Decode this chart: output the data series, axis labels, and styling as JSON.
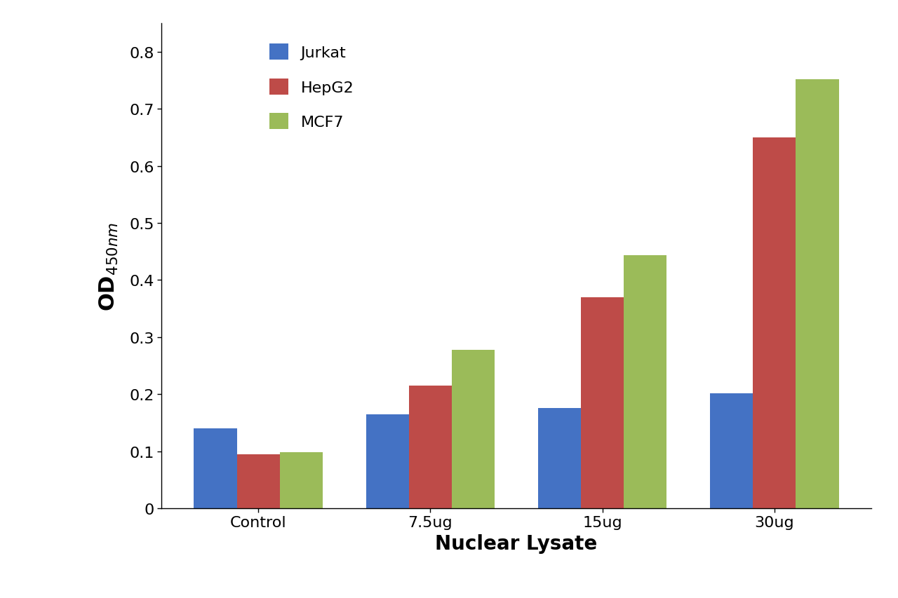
{
  "categories": [
    "Control",
    "7.5ug",
    "15ug",
    "30ug"
  ],
  "series": {
    "Jurkat": [
      0.14,
      0.165,
      0.175,
      0.202
    ],
    "HepG2": [
      0.095,
      0.215,
      0.37,
      0.65
    ],
    "MCF7": [
      0.098,
      0.278,
      0.443,
      0.752
    ]
  },
  "colors": {
    "Jurkat": "#4472C4",
    "HepG2": "#BE4B48",
    "MCF7": "#9BBB59"
  },
  "ylabel_main": "OD",
  "ylabel_sub": "450nm",
  "xlabel": "Nuclear Lysate",
  "ylim": [
    0,
    0.85
  ],
  "yticks": [
    0,
    0.1,
    0.2,
    0.3,
    0.4,
    0.5,
    0.6,
    0.7,
    0.8
  ],
  "legend_labels": [
    "Jurkat",
    "HepG2",
    "MCF7"
  ],
  "bar_width": 0.25,
  "xlabel_fontsize": 20,
  "ylabel_fontsize": 22,
  "tick_fontsize": 16,
  "legend_fontsize": 16,
  "background_color": "#ffffff"
}
